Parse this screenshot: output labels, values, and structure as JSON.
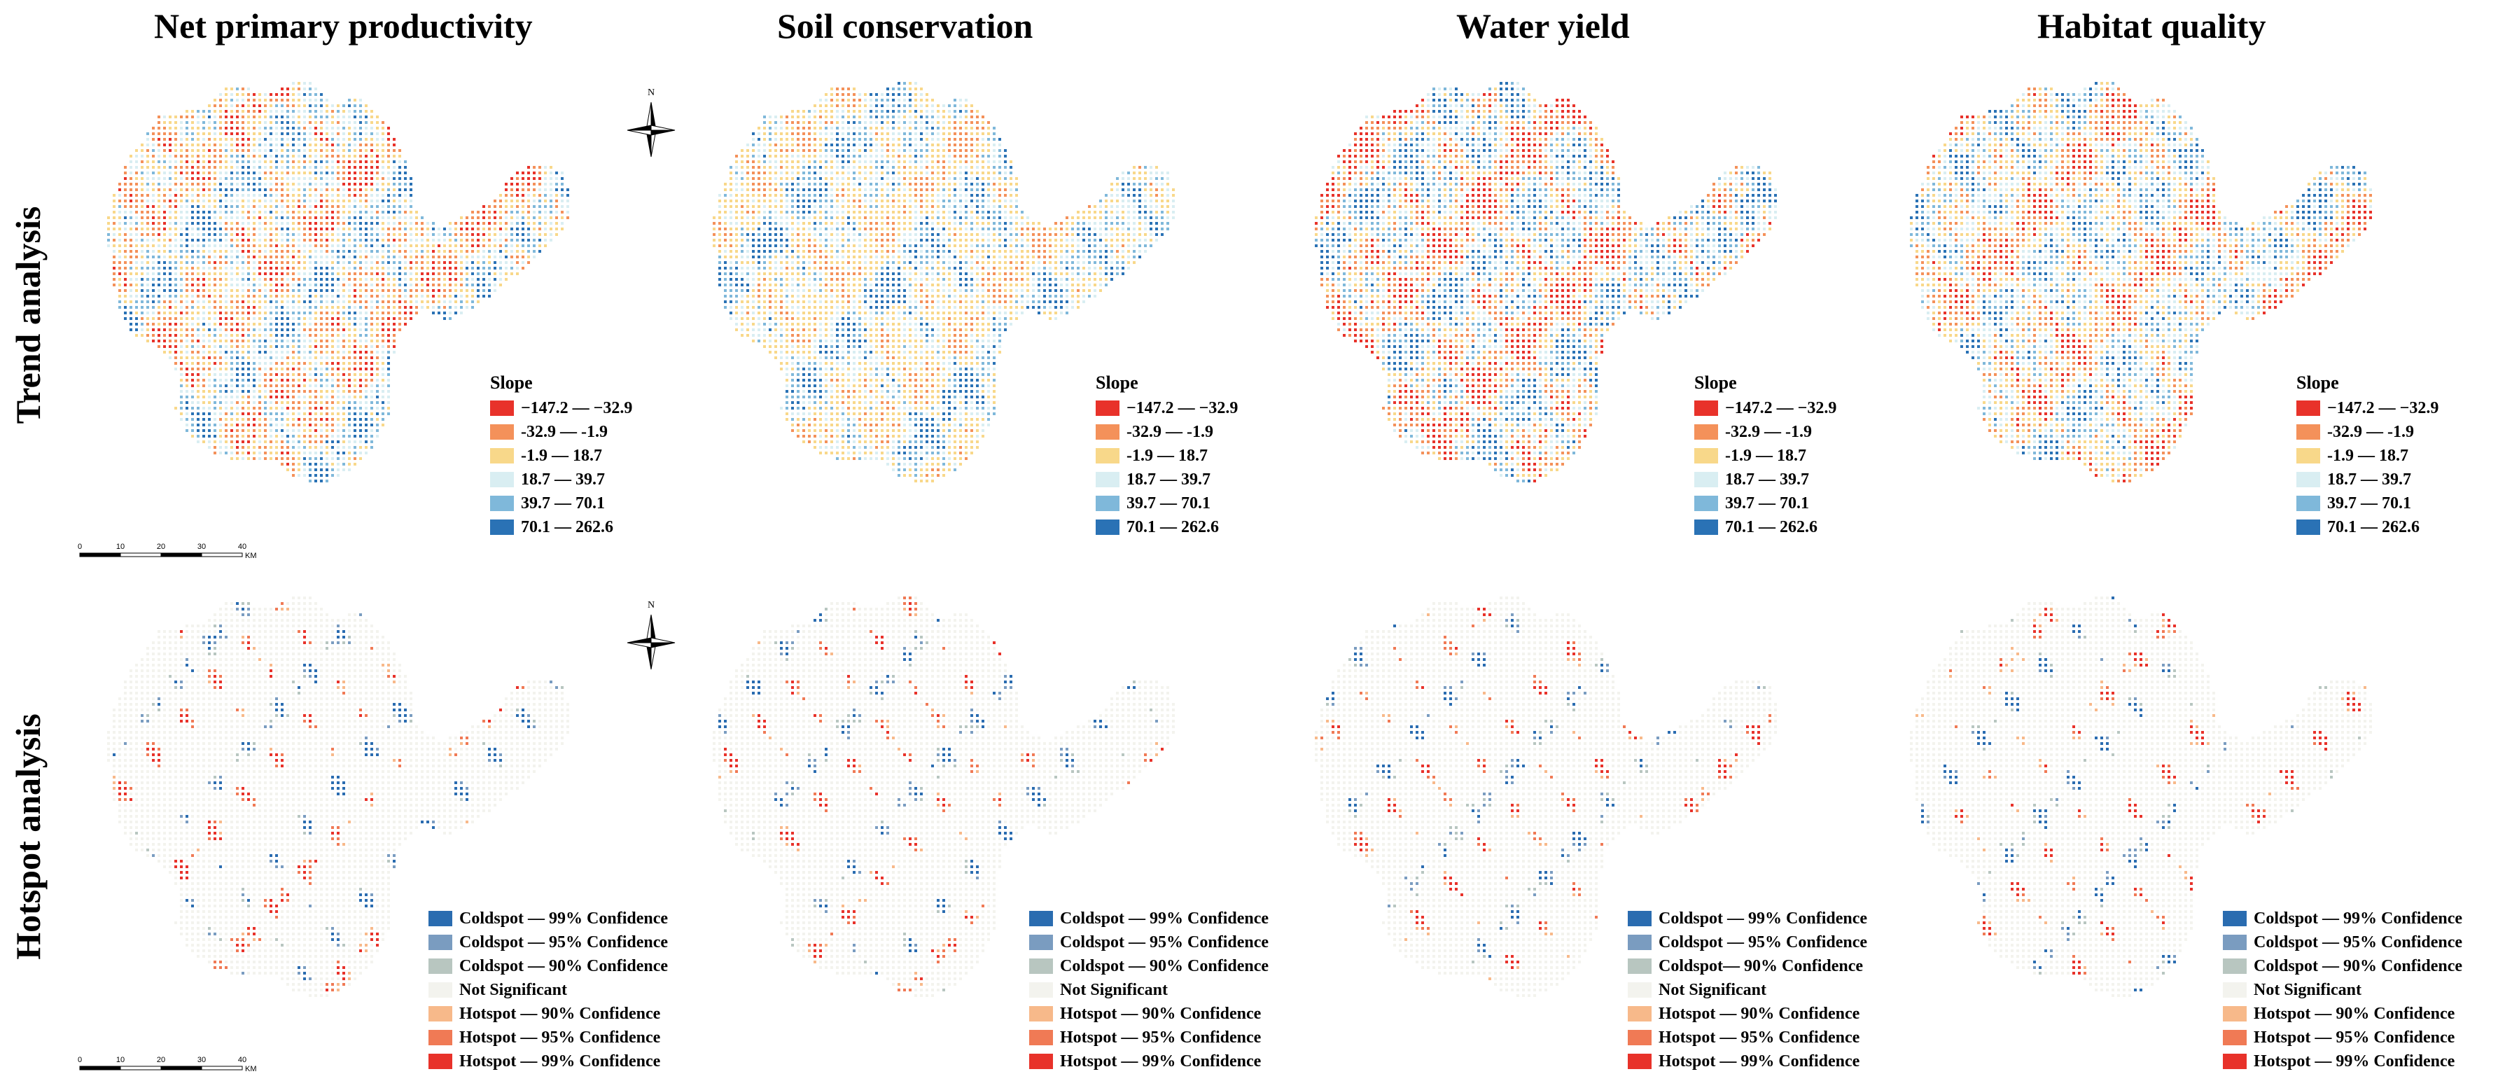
{
  "columns": [
    {
      "title": "Net primary productivity",
      "key": "npp"
    },
    {
      "title": "Soil conservation",
      "key": "soil"
    },
    {
      "title": "Water yield",
      "key": "water"
    },
    {
      "title": "Habitat quality",
      "key": "habitat"
    }
  ],
  "rows": [
    {
      "label": "Trend analysis",
      "key": "trend"
    },
    {
      "label": "Hotspot analysis",
      "key": "hotspot"
    }
  ],
  "trend_legend": {
    "title": "Slope",
    "items": [
      {
        "label": "−147.2 — −32.9",
        "color": "#e8322a"
      },
      {
        "label": "-32.9 — -1.9",
        "color": "#f4915a"
      },
      {
        "label": "-1.9 — 18.7",
        "color": "#f8d88a"
      },
      {
        "label": "18.7 — 39.7",
        "color": "#d9eef2"
      },
      {
        "label": "39.7 — 70.1",
        "color": "#7fb8da"
      },
      {
        "label": "70.1 — 262.6",
        "color": "#2a72b5"
      }
    ]
  },
  "hotspot_legends": [
    {
      "items": [
        {
          "label": "Coldspot — 99% Confidence",
          "color": "#2a6cb0"
        },
        {
          "label": "Coldspot — 95% Confidence",
          "color": "#7a9cc0"
        },
        {
          "label": "Coldspot — 90% Confidence",
          "color": "#b8c6c0"
        },
        {
          "label": "Not Significant",
          "color": "#f3f3ee"
        },
        {
          "label": "Hotspot — 90% Confidence",
          "color": "#f7b98a"
        },
        {
          "label": "Hotspot — 95% Confidence",
          "color": "#f07a55"
        },
        {
          "label": "Hotspot — 99% Confidence",
          "color": "#e8322a"
        }
      ]
    },
    {
      "items": [
        {
          "label": "Coldspot — 99% Confidence",
          "color": "#2a6cb0"
        },
        {
          "label": "Coldspot — 95% Confidence",
          "color": "#7a9cc0"
        },
        {
          "label": "Coldspot — 90% Confidence",
          "color": "#b8c6c0"
        },
        {
          "label": "Not Significant",
          "color": "#f3f3ee"
        },
        {
          "label": "Hotspot — 90% Confidence",
          "color": "#f7b98a"
        },
        {
          "label": "Hotspot — 95% Confidence",
          "color": "#f07a55"
        },
        {
          "label": "Hotspot — 99% Confidence",
          "color": "#e8322a"
        }
      ]
    },
    {
      "items": [
        {
          "label": "Coldspot — 99% Confidence",
          "color": "#2a6cb0"
        },
        {
          "label": "Coldspot — 95% Confidence",
          "color": "#7a9cc0"
        },
        {
          "label": "Coldspot— 90% Confidence",
          "color": "#b8c6c0"
        },
        {
          "label": "Not Significant",
          "color": "#f3f3ee"
        },
        {
          "label": "Hotspot — 90% Confidence",
          "color": "#f7b98a"
        },
        {
          "label": "Hotspot — 95% Confidence",
          "color": "#f07a55"
        },
        {
          "label": "Hotspot — 99% Confidence",
          "color": "#e8322a"
        }
      ]
    },
    {
      "items": [
        {
          "label": "Coldspot — 99% Confidence",
          "color": "#2a6cb0"
        },
        {
          "label": "Coldspot — 95% Confidence",
          "color": "#7a9cc0"
        },
        {
          "label": "Coldspot — 90% Confidence",
          "color": "#b8c6c0"
        },
        {
          "label": "Not Significant",
          "color": "#f3f3ee"
        },
        {
          "label": "Hotspot — 90% Confidence",
          "color": "#f7b98a"
        },
        {
          "label": "Hotspot — 95% Confidence",
          "color": "#f07a55"
        },
        {
          "label": "Hotspot — 99% Confidence",
          "color": "#e8322a"
        }
      ]
    }
  ],
  "scale_bar": {
    "ticks": [
      "0",
      "10",
      "20",
      "30",
      "40"
    ],
    "unit": "KM"
  },
  "north_arrow": {
    "label": "N",
    "icon": "north-arrow-icon"
  },
  "map_colors": {
    "background_fill": "#f3f3ee",
    "grid_line": "#ffffff"
  }
}
